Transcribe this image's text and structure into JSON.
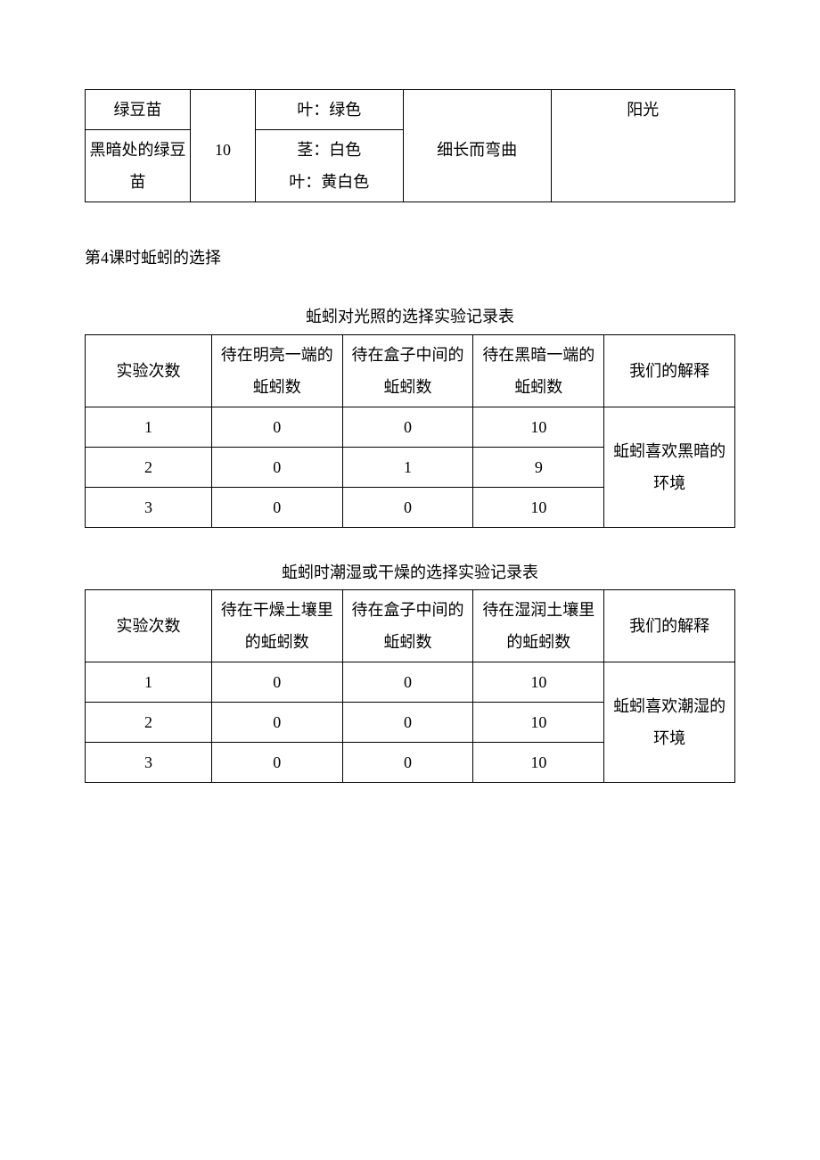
{
  "table1": {
    "rows": [
      {
        "c1": "绿豆苗",
        "c2": "",
        "c3": "叶：绿色",
        "c4": "",
        "c5": "阳光"
      },
      {
        "c1": "黑暗处的绿豆苗",
        "c2": "10",
        "c3": "茎：白色<br>叶：黄白色",
        "c4": "细长而弯曲",
        "c5": ""
      }
    ]
  },
  "section_heading": "第4课时蚯蚓的选择",
  "table2": {
    "title": "蚯蚓对光照的选择实验记录表",
    "headers": [
      "实验次数",
      "待在明亮一端的蚯蚓数",
      "待在盒子中间的蚯蚓数",
      "待在黑暗一端的蚯蚓数",
      "我们的解释"
    ],
    "rows": [
      [
        "1",
        "0",
        "0",
        "10"
      ],
      [
        "2",
        "0",
        "1",
        "9"
      ],
      [
        "3",
        "0",
        "0",
        "10"
      ]
    ],
    "explanation": "蚯蚓喜欢黑暗的环境"
  },
  "table3": {
    "title": "蚯蚓时潮湿或干燥的选择实验记录表",
    "headers": [
      "实验次数",
      "待在干燥土壤里的蚯蚓数",
      "待在盒子中间的蚯蚓数",
      "待在湿润土壤里的蚯蚓数",
      "我们的解释"
    ],
    "rows": [
      [
        "1",
        "0",
        "0",
        "10"
      ],
      [
        "2",
        "0",
        "0",
        "10"
      ],
      [
        "3",
        "0",
        "0",
        "10"
      ]
    ],
    "explanation": "蚯蚓喜欢潮湿的环境"
  }
}
